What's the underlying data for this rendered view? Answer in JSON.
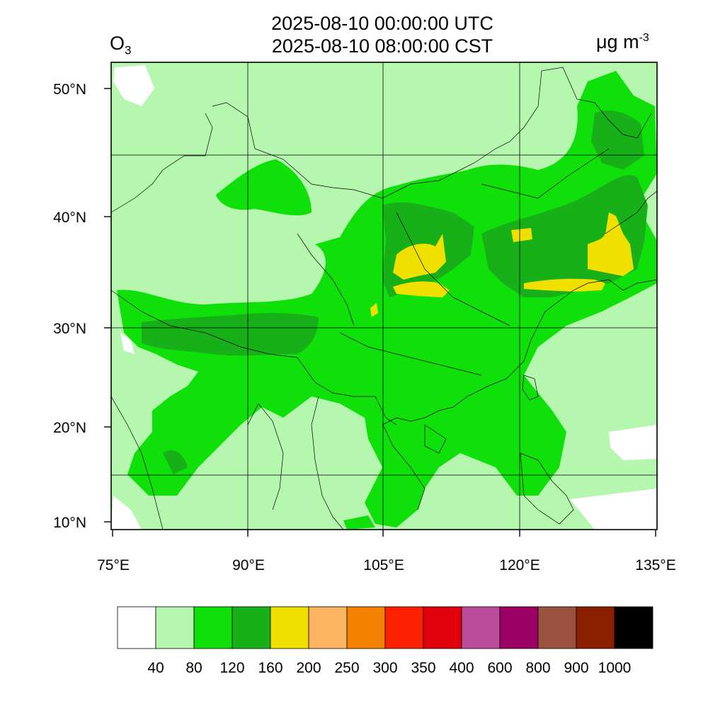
{
  "header": {
    "utc_time": "2025-08-10 00:00:00 UTC",
    "local_time": "2025-08-10 08:00:00 CST",
    "species": "O",
    "species_sub": "3",
    "units_main": "μg m",
    "units_sup": "-3"
  },
  "axes": {
    "lon_labels": [
      "75°E",
      "90°E",
      "105°E",
      "120°E",
      "135°E"
    ],
    "lat_labels": [
      "10°N",
      "20°N",
      "30°N",
      "40°N",
      "50°N"
    ]
  },
  "colorbar": {
    "colors": [
      "#ffffff",
      "#b6f7b0",
      "#10e00a",
      "#18b018",
      "#f0e000",
      "#fdb460",
      "#f48100",
      "#fb2000",
      "#e0000c",
      "#bb4c9c",
      "#9b0065",
      "#98523f",
      "#891f00",
      "#000000"
    ],
    "labels": [
      "40",
      "80",
      "120",
      "160",
      "200",
      "250",
      "300",
      "350",
      "400",
      "600",
      "800",
      "900",
      "1000"
    ]
  }
}
